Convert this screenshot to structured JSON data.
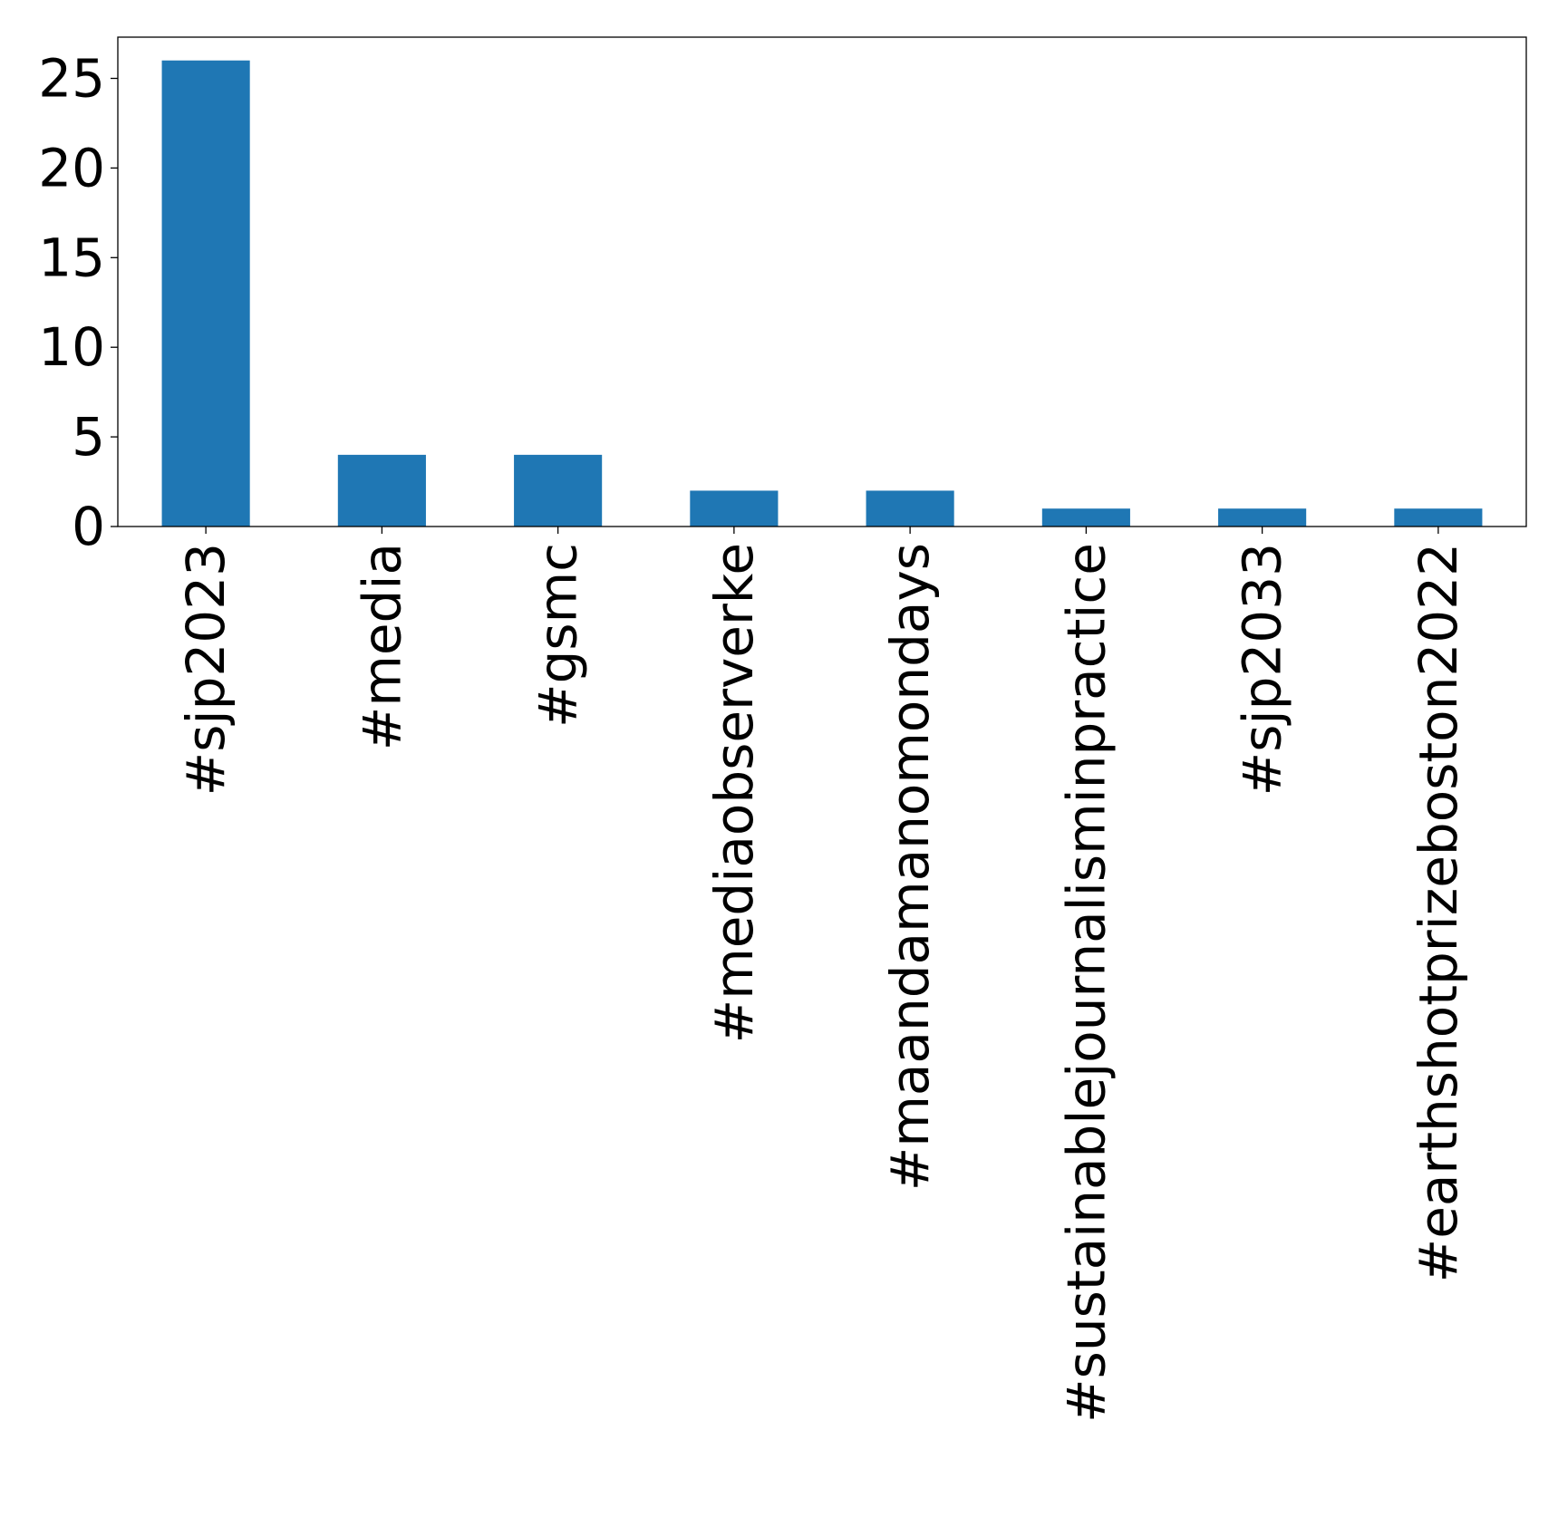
{
  "chart_data": {
    "type": "bar",
    "title": "",
    "xlabel": "",
    "ylabel": "",
    "categories": [
      "#sjp2023",
      "#media",
      "#gsmc",
      "#mediaobserverke",
      "#maandamanomondays",
      "#sustainablejournalisminpractice",
      "#sjp2033",
      "#earthshotprizeboston2022"
    ],
    "values": [
      26,
      4,
      4,
      2,
      2,
      1,
      1,
      1
    ],
    "ylim": [
      0,
      27.3
    ],
    "yticks": [
      0,
      5,
      10,
      15,
      20,
      25
    ],
    "bar_color": "#1f77b4",
    "grid": false,
    "legend": "none"
  }
}
